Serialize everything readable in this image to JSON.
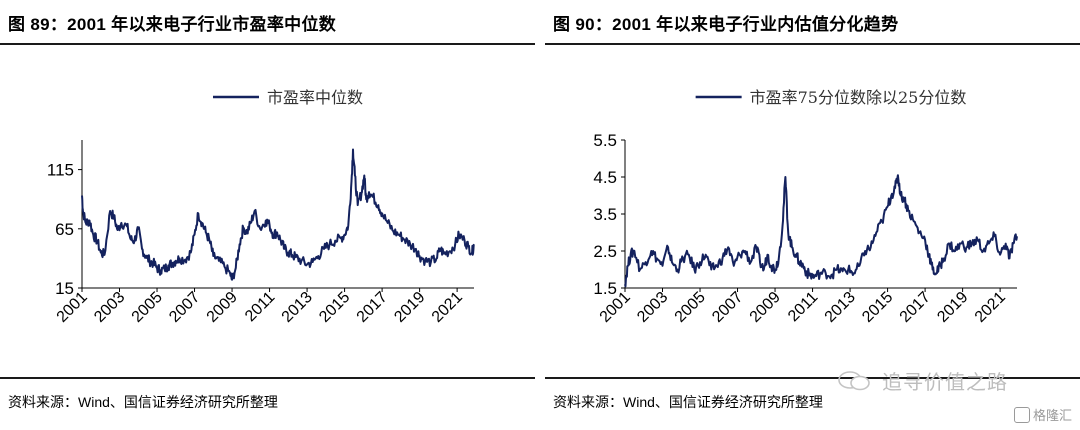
{
  "watermark": {
    "text": "追寻价值之路",
    "icon": "wechat-icon"
  },
  "corner_logo": {
    "text": "格隆汇",
    "icon": "glh-logo-icon"
  },
  "charts": [
    {
      "title": "图 89：2001 年以来电子行业市盈率中位数",
      "source": "资料来源：Wind、国信证券经济研究所整理",
      "legend": "市盈率中位数"
    },
    {
      "title": "图 90：2001 年以来电子行业内估值分化趋势",
      "source": "资料来源：Wind、国信证券经济研究所整理",
      "legend": "市盈率75分位数除以25分位数"
    }
  ],
  "chart_data": [
    {
      "type": "line",
      "title": "图 89：2001 年以来电子行业市盈率中位数",
      "xlabel": "",
      "ylabel": "",
      "x_ticks": [
        "2001",
        "2003",
        "2005",
        "2007",
        "2009",
        "2011",
        "2013",
        "2015",
        "2017",
        "2019",
        "2021"
      ],
      "y_ticks": [
        15,
        65,
        115
      ],
      "ylim": [
        15,
        140
      ],
      "xlim": [
        2001.0,
        2021.9
      ],
      "grid": false,
      "legend_position": "top-center",
      "series": [
        {
          "name": "市盈率中位数",
          "color": "#14225e",
          "x": [
            2001.0,
            2001.05,
            2001.2,
            2001.4,
            2001.6,
            2001.8,
            2002.0,
            2002.2,
            2002.5,
            2002.7,
            2002.9,
            2003.1,
            2003.4,
            2003.6,
            2003.8,
            2004.0,
            2004.2,
            2004.4,
            2004.6,
            2004.8,
            2005.0,
            2005.2,
            2005.4,
            2005.6,
            2005.8,
            2006.0,
            2006.2,
            2006.5,
            2006.8,
            2007.0,
            2007.2,
            2007.4,
            2007.6,
            2007.8,
            2008.0,
            2008.3,
            2008.6,
            2008.9,
            2009.0,
            2009.2,
            2009.4,
            2009.6,
            2009.8,
            2010.0,
            2010.2,
            2010.5,
            2010.8,
            2011.0,
            2011.2,
            2011.4,
            2011.6,
            2011.8,
            2012.0,
            2012.2,
            2012.4,
            2012.7,
            2013.0,
            2013.3,
            2013.6,
            2013.9,
            2014.2,
            2014.5,
            2014.8,
            2015.0,
            2015.2,
            2015.35,
            2015.45,
            2015.55,
            2015.7,
            2015.9,
            2016.05,
            2016.15,
            2016.3,
            2016.5,
            2016.8,
            2017.0,
            2017.3,
            2017.6,
            2017.9,
            2018.2,
            2018.5,
            2018.8,
            2019.0,
            2019.3,
            2019.6,
            2019.9,
            2020.1,
            2020.3,
            2020.6,
            2020.9,
            2021.1,
            2021.4,
            2021.6,
            2021.8,
            2021.9
          ],
          "values": [
            93,
            80,
            70,
            72,
            60,
            55,
            45,
            43,
            80,
            75,
            64,
            70,
            67,
            56,
            55,
            65,
            48,
            42,
            38,
            36,
            32,
            30,
            31,
            34,
            36,
            38,
            40,
            39,
            45,
            60,
            78,
            70,
            62,
            55,
            42,
            38,
            33,
            27,
            22,
            32,
            52,
            66,
            62,
            70,
            80,
            65,
            72,
            68,
            60,
            62,
            55,
            48,
            45,
            43,
            41,
            38,
            35,
            37,
            42,
            48,
            52,
            55,
            57,
            60,
            68,
            100,
            132,
            110,
            85,
            95,
            110,
            90,
            96,
            92,
            85,
            78,
            70,
            63,
            60,
            56,
            52,
            48,
            42,
            38,
            37,
            40,
            48,
            44,
            46,
            52,
            60,
            55,
            50,
            45,
            52
          ]
        }
      ]
    },
    {
      "type": "line",
      "title": "图 90：2001 年以来电子行业内估值分化趋势",
      "xlabel": "",
      "ylabel": "",
      "x_ticks": [
        "2001",
        "2003",
        "2005",
        "2007",
        "2009",
        "2011",
        "2013",
        "2015",
        "2017",
        "2019",
        "2021"
      ],
      "y_ticks": [
        1.5,
        2.5,
        3.5,
        4.5,
        5.5
      ],
      "ylim": [
        1.5,
        5.5
      ],
      "xlim": [
        2001.0,
        2021.9
      ],
      "grid": false,
      "legend_position": "top-center",
      "series": [
        {
          "name": "市盈率75分位数除以25分位数",
          "color": "#14225e",
          "x": [
            2001.0,
            2001.15,
            2001.3,
            2001.5,
            2001.8,
            2002.1,
            2002.4,
            2002.7,
            2003.0,
            2003.3,
            2003.5,
            2003.8,
            2004.1,
            2004.4,
            2004.7,
            2005.0,
            2005.3,
            2005.6,
            2005.9,
            2006.2,
            2006.5,
            2006.8,
            2007.1,
            2007.4,
            2007.7,
            2008.0,
            2008.2,
            2008.4,
            2008.6,
            2008.8,
            2009.0,
            2009.2,
            2009.4,
            2009.55,
            2009.7,
            2009.9,
            2010.1,
            2010.3,
            2010.5,
            2010.7,
            2010.9,
            2011.1,
            2011.4,
            2011.7,
            2012.0,
            2012.3,
            2012.6,
            2012.9,
            2013.2,
            2013.5,
            2013.8,
            2014.1,
            2014.4,
            2014.7,
            2015.0,
            2015.2,
            2015.4,
            2015.55,
            2015.7,
            2015.9,
            2016.1,
            2016.4,
            2016.7,
            2017.0,
            2017.2,
            2017.4,
            2017.6,
            2017.8,
            2018.0,
            2018.3,
            2018.6,
            2018.9,
            2019.2,
            2019.5,
            2019.8,
            2020.1,
            2020.4,
            2020.7,
            2021.0,
            2021.3,
            2021.5,
            2021.7,
            2021.9
          ],
          "values": [
            1.6,
            2.1,
            2.4,
            2.5,
            2.0,
            2.2,
            2.5,
            2.3,
            2.1,
            2.6,
            2.2,
            2.0,
            2.3,
            2.4,
            2.0,
            2.2,
            2.4,
            2.0,
            2.1,
            2.3,
            2.6,
            2.1,
            2.4,
            2.5,
            2.2,
            2.6,
            2.2,
            2.0,
            2.4,
            2.1,
            2.0,
            2.3,
            3.2,
            4.5,
            3.0,
            2.6,
            2.4,
            2.2,
            2.1,
            1.9,
            1.85,
            1.8,
            1.9,
            1.9,
            1.85,
            2.0,
            1.95,
            2.0,
            1.9,
            2.1,
            2.5,
            2.6,
            3.0,
            3.3,
            3.7,
            4.0,
            4.2,
            4.55,
            4.0,
            3.9,
            3.6,
            3.3,
            3.0,
            2.8,
            2.4,
            2.0,
            1.9,
            2.1,
            2.3,
            2.7,
            2.5,
            2.7,
            2.6,
            2.7,
            2.8,
            2.5,
            2.7,
            2.9,
            2.4,
            2.7,
            2.3,
            2.7,
            2.9
          ]
        }
      ]
    }
  ]
}
